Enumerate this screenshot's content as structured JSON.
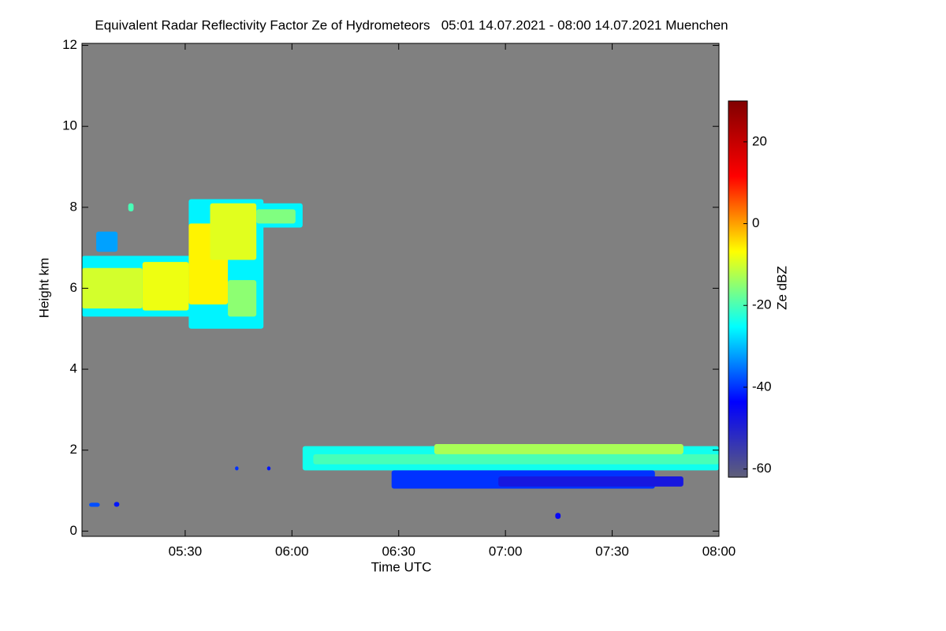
{
  "chart_data": {
    "type": "heatmap",
    "title": "Equivalent Radar Reflectivity Factor Ze of Hydrometeors   05:01 14.07.2021 - 08:00 14.07.2021 Muenchen",
    "x_label": "Time UTC",
    "y_label": "Height km",
    "colorbar_label": "Ze dBZ",
    "xlim": [
      301,
      480
    ],
    "xticks": [
      {
        "value": 330,
        "label": "05:30"
      },
      {
        "value": 360,
        "label": "06:00"
      },
      {
        "value": 390,
        "label": "06:30"
      },
      {
        "value": 420,
        "label": "07:00"
      },
      {
        "value": 450,
        "label": "07:30"
      },
      {
        "value": 480,
        "label": "08:00"
      }
    ],
    "ylim": [
      -0.13,
      12.05
    ],
    "yticks": [
      0,
      2,
      4,
      6,
      8,
      10,
      12
    ],
    "zlim": [
      -62,
      30
    ],
    "zticks": [
      -60,
      -40,
      -20,
      0,
      20
    ],
    "background": "#808080",
    "colormap": [
      "#5f5f78",
      "#0000ff",
      "#00ffff",
      "#ffff00",
      "#ff0000",
      "#800000"
    ],
    "echoes": [
      {
        "t0": 301,
        "t1": 332,
        "h0": 5.3,
        "h1": 6.8,
        "ze": -26
      },
      {
        "t0": 331,
        "t1": 352,
        "h0": 5.0,
        "h1": 8.2,
        "ze": -26
      },
      {
        "t0": 350,
        "t1": 363,
        "h0": 7.5,
        "h1": 8.1,
        "ze": -26
      },
      {
        "t0": 301,
        "t1": 318,
        "h0": 5.5,
        "h1": 6.5,
        "ze": -10
      },
      {
        "t0": 318,
        "t1": 331,
        "h0": 5.45,
        "h1": 6.65,
        "ze": -8
      },
      {
        "t0": 331,
        "t1": 342,
        "h0": 5.6,
        "h1": 7.6,
        "ze": -6
      },
      {
        "t0": 342,
        "t1": 350,
        "h0": 5.3,
        "h1": 6.2,
        "ze": -15
      },
      {
        "t0": 337,
        "t1": 350,
        "h0": 6.7,
        "h1": 8.1,
        "ze": -9
      },
      {
        "t0": 350,
        "t1": 361,
        "h0": 7.6,
        "h1": 7.95,
        "ze": -16
      },
      {
        "t0": 305,
        "t1": 311,
        "h0": 6.9,
        "h1": 7.4,
        "ze": -32
      },
      {
        "t0": 314,
        "t1": 315.5,
        "h0": 7.9,
        "h1": 8.1,
        "ze": -20
      },
      {
        "t0": 363,
        "t1": 480,
        "h0": 1.5,
        "h1": 2.1,
        "ze": -24
      },
      {
        "t0": 366,
        "t1": 480,
        "h0": 1.65,
        "h1": 1.9,
        "ze": -20
      },
      {
        "t0": 400,
        "t1": 470,
        "h0": 1.9,
        "h1": 2.15,
        "ze": -13
      },
      {
        "t0": 388,
        "t1": 462,
        "h0": 1.05,
        "h1": 1.5,
        "ze": -40
      },
      {
        "t0": 418,
        "t1": 470,
        "h0": 1.1,
        "h1": 1.35,
        "ze": -48
      },
      {
        "t0": 303,
        "t1": 306,
        "h0": 0.6,
        "h1": 0.7,
        "ze": -38
      },
      {
        "t0": 310,
        "t1": 311.5,
        "h0": 0.6,
        "h1": 0.72,
        "ze": -42
      },
      {
        "t0": 344,
        "t1": 345,
        "h0": 1.5,
        "h1": 1.6,
        "ze": -40
      },
      {
        "t0": 353,
        "t1": 354,
        "h0": 1.5,
        "h1": 1.6,
        "ze": -42
      },
      {
        "t0": 434,
        "t1": 435.5,
        "h0": 0.3,
        "h1": 0.45,
        "ze": -45
      }
    ]
  }
}
